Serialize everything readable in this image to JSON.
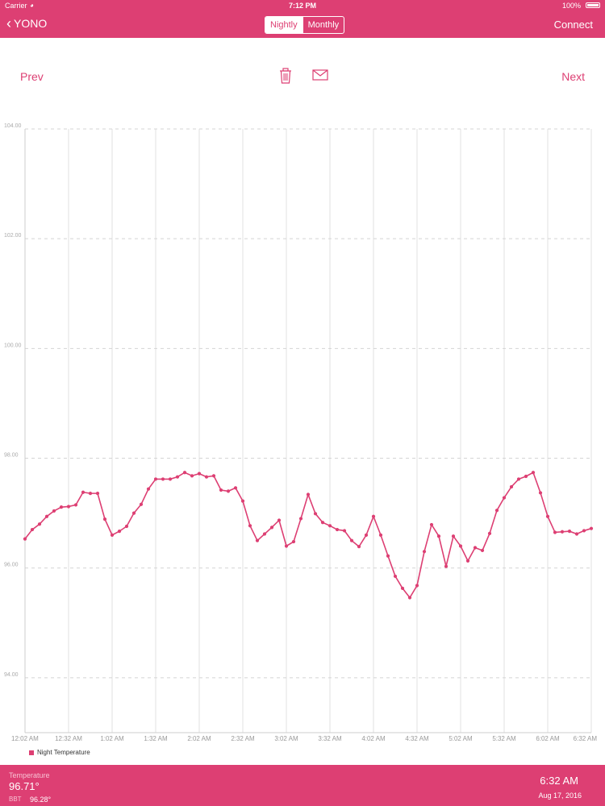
{
  "status_bar": {
    "carrier": "Carrier",
    "time": "7:12 PM",
    "battery": "100%"
  },
  "nav": {
    "back_label": "YONO",
    "segments": [
      "Nightly",
      "Monthly"
    ],
    "selected_segment": "Nightly",
    "connect_label": "Connect"
  },
  "toolbar": {
    "prev_label": "Prev",
    "next_label": "Next",
    "icons": [
      "trash-icon",
      "mail-icon"
    ]
  },
  "chart_data": {
    "type": "line",
    "y_ticks": [
      "94.00",
      "96.00",
      "98.00",
      "100.00",
      "102.00",
      "104.00"
    ],
    "ylim": [
      93,
      104
    ],
    "x_ticks": [
      "12:02 AM",
      "12:32 AM",
      "1:02 AM",
      "1:32 AM",
      "2:02 AM",
      "2:32 AM",
      "3:02 AM",
      "3:32 AM",
      "4:02 AM",
      "4:32 AM",
      "5:02 AM",
      "5:32 AM",
      "6:02 AM",
      "6:32 AM"
    ],
    "grid": true,
    "legend_position": "bottom-left",
    "series": [
      {
        "name": "Night Temperature",
        "color": "#dd3f73",
        "values": [
          96.53,
          96.7,
          96.8,
          96.94,
          97.04,
          97.11,
          97.12,
          97.15,
          97.38,
          97.36,
          97.36,
          96.89,
          96.6,
          96.67,
          96.76,
          97.0,
          97.16,
          97.44,
          97.62,
          97.62,
          97.62,
          97.66,
          97.74,
          97.68,
          97.72,
          97.66,
          97.68,
          97.42,
          97.4,
          97.46,
          97.22,
          96.77,
          96.5,
          96.62,
          96.74,
          96.87,
          96.4,
          96.48,
          96.9,
          97.34,
          96.99,
          96.83,
          96.77,
          96.7,
          96.68,
          96.5,
          96.39,
          96.6,
          96.94,
          96.6,
          96.22,
          95.85,
          95.63,
          95.46,
          95.68,
          96.3,
          96.79,
          96.58,
          96.03,
          96.58,
          96.4,
          96.13,
          96.37,
          96.32,
          96.63,
          97.05,
          97.28,
          97.48,
          97.62,
          97.67,
          97.74,
          97.37,
          96.94,
          96.65,
          96.66,
          96.67,
          96.62,
          96.68,
          96.72
        ]
      }
    ]
  },
  "footer": {
    "temperature_label": "Temperature",
    "temperature_value": "96.71°",
    "bbt_label": "BBT",
    "bbt_value": "96.28°",
    "time": "6:32 AM",
    "date": "Aug 17, 2016"
  }
}
